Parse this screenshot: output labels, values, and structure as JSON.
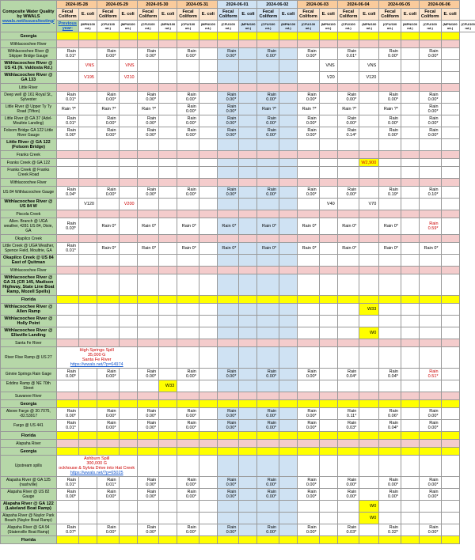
{
  "colors": {
    "green": "#b6d7a8",
    "orange": "#f9cb9c",
    "blue": "#cfe2f3",
    "tan": "#fce5cd",
    "pink": "#f4cccc",
    "yellow": "#ffff00",
    "red": "#cc0000",
    "link": "#1155cc"
  },
  "header": {
    "title1": "Composite Water Quality",
    "title2": "by WWALS",
    "link": "wwals.net/issues/testing/",
    "prev_year": "Previous year:",
    "dates": [
      "2024-05-28",
      "2024-05-29",
      "2024-05-30",
      "2024-05-31",
      "2024-06-01",
      "2024-06-02",
      "2024-06-03",
      "2024-06-04",
      "2024-06-05",
      "2024-06-06"
    ],
    "blue_dates": [
      4,
      5
    ],
    "sub": {
      "fecal": "Fecal Coliform",
      "ecoli": "E. coli"
    },
    "unit_fecal": "(MPN/100 mL)",
    "unit_ecoli": "(CFU/100 mL)"
  },
  "rows": [
    {
      "label": "Georgia",
      "type": "state",
      "cells_yellow": true
    },
    {
      "label": "Withlacoochee River",
      "type": "pink"
    },
    {
      "label": "Withlacoochee River @ Skipper Bridge Gauge",
      "cells": {
        "1": "Rain 0.01*",
        "3": "Rain 0.00*",
        "5": "Rain 0.00*",
        "7": "Rain 0.00*",
        "9": "Rain 0.00*",
        "11": "Rain 0.00*",
        "13": "Rain 0.00*",
        "15": "Rain 0.01*",
        "17": "Rain 0.00*",
        "19": "Rain 0.00*"
      }
    },
    {
      "label": "Withlacoochee River @ US 41 (N. Valdosta Rd.)",
      "bold": true,
      "cells": {
        "2": "VNS",
        "4": "VNS",
        "14": "VNS",
        "16": "VNS"
      },
      "red": {
        "2": true,
        "4": true
      }
    },
    {
      "label": "Withlacoochee River @ GA 133",
      "bold": true,
      "cells": {
        "2": "V195",
        "4": "V210",
        "14": "V20",
        "16": "V120"
      },
      "red": {
        "2": true,
        "4": true
      }
    },
    {
      "label": "Little River",
      "type": "pink"
    },
    {
      "label": "Deep well @ 161 Royal St., Sylvester",
      "cells": {
        "1": "Rain 0.01*",
        "3": "Rain 0.00*",
        "5": "Rain 0.00*",
        "7": "Rain 0.00*",
        "9": "Rain 0.00*",
        "11": "Rain 0.00*",
        "13": "Rain 0.00*",
        "15": "Rain 0.00*",
        "17": "Rain 0.00*",
        "19": "Rain 0.00*"
      }
    },
    {
      "label": "Little River @ Upper Ty Ty Road (Tifton)",
      "cells": {
        "1": "Rain ?*",
        "3": "Rain ?*",
        "5": "Rain ?*",
        "7": "Rain 0.00*",
        "9": "Rain 0.00*",
        "11": "Rain ?*",
        "13": "Rain ?*",
        "15": "Rain ?*",
        "17": "Rain ?*",
        "19": "Rain 0.00*"
      }
    },
    {
      "label": "Little River @ GA 37 (Adel-Moultrie Landing)",
      "cells": {
        "1": "Rain 0.01*",
        "3": "Rain 0.00*",
        "5": "Rain 0.00*",
        "7": "Rain 0.00*",
        "9": "Rain 0.00*",
        "11": "Rain 0.00*",
        "13": "Rain 0.00*",
        "15": "Rain 0.00*",
        "17": "Rain 0.00*",
        "19": "Rain 0.00*"
      }
    },
    {
      "label": "Folsom Bridge GA 122 Little River Gauge",
      "cells": {
        "1": "Rain 0.00*",
        "3": "Rain 0.00*",
        "5": "Rain 0.00*",
        "7": "Rain 0.00*",
        "9": "Rain 0.00*",
        "11": "Rain 0.00*",
        "13": "Rain 0.00*",
        "15": "Rain 0.14*",
        "17": "Rain 0.00*",
        "19": "Rain 0.00*"
      }
    },
    {
      "label": "Little River @ GA 122 (Folsom Bridge)",
      "bold": true
    },
    {
      "label": "Franks Creek",
      "type": "pink"
    },
    {
      "label": "Franks Creek @ GA 122",
      "cells": {
        "16": "W2,900"
      },
      "red": {
        "16": true
      }
    },
    {
      "label": "Franks Creek @ Franks Creek Road"
    },
    {
      "label": "Withlacoochee River",
      "type": "pink"
    },
    {
      "label": "US 84 Withlacoochee Gauge",
      "cells": {
        "1": "Rain 0.04*",
        "3": "Rain 0.00*",
        "5": "Rain 0.00*",
        "7": "Rain 0.00*",
        "9": "Rain 0.00*",
        "11": "Rain 0.00*",
        "13": "Rain 0.00*",
        "15": "Rain 0.00*",
        "17": "Rain 0.19*",
        "19": "Rain 0.10*"
      }
    },
    {
      "label": "Withlacoochee River @ US 84 W",
      "bold": true,
      "cells": {
        "2": "V120",
        "4": "V200",
        "14": "V40",
        "16": "V70"
      },
      "red": {
        "4": true
      }
    },
    {
      "label": "Piscola Creek",
      "type": "pink"
    },
    {
      "label": "Allen. Branch @ UGA weather, 4281 US 84, Dixie, GA",
      "cells": {
        "1": "Rain 0.03*",
        "3": "Rain 0*",
        "5": "Rain 0*",
        "7": "Rain 0*",
        "9": "Rain 0*",
        "11": "Rain 0*",
        "13": "Rain 0*",
        "15": "Rain 0*",
        "17": "Rain 0*",
        "19": "Rain 0.59*"
      },
      "red": {
        "19": true
      }
    },
    {
      "label": "Okapilco Creek",
      "type": "pink"
    },
    {
      "label": "Little Creek @ UGA Weather, Spence Field, Moultrie, GA",
      "cells": {
        "1": "Rain 0.01*",
        "3": "Rain 0*",
        "5": "Rain 0*",
        "7": "Rain 0*",
        "9": "Rain 0*",
        "11": "Rain 0*",
        "13": "Rain 0*",
        "15": "Rain 0*",
        "17": "Rain 0*",
        "19": "Rain 0*"
      }
    },
    {
      "label": "Okapilco Creek @ US 84 East of Quitman",
      "bold": true
    },
    {
      "label": "Withlacoochee River",
      "type": "pink"
    },
    {
      "label": "Withlacoochee River @ GA 31 (CR 145, Madison Highway, State Line Boat Ramp, Mozell Spells)",
      "bold": true
    },
    {
      "label": "Florida",
      "type": "state",
      "cells_yellow": true
    },
    {
      "label": "Withlacoochee River @ Allen Ramp",
      "bold": true,
      "cells": {
        "16": "W33"
      }
    },
    {
      "label": "Withlacoochee River @ Holly Point",
      "bold": true
    },
    {
      "label": "Withlacoochee River @ Ellaville Landing",
      "bold": true,
      "cells": {
        "16": "W0"
      }
    },
    {
      "label": "Santa Fe River",
      "type": "pink"
    },
    {
      "label": "River Rise Ramp @ US 27",
      "spill": "high_springs"
    },
    {
      "label": "Ginnie Springs Rain Gage",
      "cells": {
        "1": "Rain 0.00*",
        "3": "Rain 0.00*",
        "5": "Rain 0.00*",
        "7": "Rain 0.00*",
        "9": "Rain 0.00*",
        "11": "Rain 0.00*",
        "13": "Rain 0.00*",
        "15": "Rain 0.04*",
        "17": "Rain 0.04*",
        "19": "Rain 0.51*"
      },
      "red": {
        "19": true
      }
    },
    {
      "label": "Eddins Ramp @ NE 70th Street",
      "cells": {
        "6": "W33"
      }
    },
    {
      "label": "Suwanee River",
      "type": "pink"
    },
    {
      "label": "Georgia",
      "type": "state",
      "cells_yellow": true
    },
    {
      "label": "Above Fargo @ 30.7075, -82.53917",
      "cells": {
        "1": "Rain 0.00*",
        "3": "Rain 0.00*",
        "5": "Rain 0.00*",
        "7": "Rain 0.00*",
        "9": "Rain 0.00*",
        "11": "Rain 0.00*",
        "13": "Rain 0.00*",
        "15": "Rain 0.11*",
        "17": "Rain 0.06*",
        "19": "Rain 0.00*"
      }
    },
    {
      "label": "Fargo @ US 441",
      "cells": {
        "1": "Rain 0.01*",
        "3": "Rain 0.00*",
        "5": "Rain 0.00*",
        "7": "Rain 0.00*",
        "9": "Rain 0.00*",
        "11": "Rain 0.00*",
        "13": "Rain 0.00*",
        "15": "Rain 0.03*",
        "17": "Rain 0.04*",
        "19": "Rain 0.00*"
      }
    },
    {
      "label": "Florida",
      "type": "state",
      "cells_yellow": true
    },
    {
      "label": "Alapaha River",
      "type": "pink"
    },
    {
      "label": "Georgia",
      "type": "state",
      "cells_yellow": true
    },
    {
      "label": "Upstream spills",
      "spill": "ashburn"
    },
    {
      "label": "Alapaha River @ GA 125 (nashville)",
      "cells": {
        "1": "Rain 0.01*",
        "3": "Rain 0.01*",
        "5": "Rain 0.00*",
        "7": "Rain 0.00*",
        "9": "Rain 0.00*",
        "11": "Rain 0.00*",
        "13": "Rain 0.00*",
        "15": "Rain 0.00*",
        "17": "Rain 0.00*",
        "19": "Rain 0.00*"
      }
    },
    {
      "label": "Alapaha River @ US 82 Gauge",
      "cells": {
        "1": "Rain 0.00*",
        "3": "Rain 0.00*",
        "5": "Rain 0.00*",
        "7": "Rain 0.00*",
        "9": "Rain 0.00*",
        "11": "Rain 0.00*",
        "13": "Rain 0.00*",
        "15": "Rain 0.00*",
        "17": "Rain 0.00*",
        "19": "Rain 0.00*"
      }
    },
    {
      "label": "Alapaha River @ GA 122 (Lakeland Boat Ramp)",
      "bold": true,
      "cells": {
        "16": "W0"
      }
    },
    {
      "label": "Alapaha River @ Naylor Park Beach (Naylor Boat Ramp)",
      "cells": {
        "16": "W0"
      }
    },
    {
      "label": "Alapaha River @ GA 94 (Statenville Boat Ramp)",
      "cells": {
        "1": "Rain 0.07*",
        "3": "Rain 0.00*",
        "5": "Rain 0.00*",
        "7": "Rain 0.00*",
        "9": "Rain 0.00*",
        "11": "Rain 0.00*",
        "13": "Rain 0.00*",
        "15": "Rain 0.03*",
        "17": "Rain 0.32*",
        "19": "Rain 0.00*"
      }
    },
    {
      "label": "Florida",
      "type": "state",
      "cells_yellow": true
    }
  ],
  "spills": {
    "high_springs": {
      "line1": "High Springs Spill",
      "line2": "35,000 G",
      "line3": "Santa Fe River",
      "link": "https://wwals.net/?p=64974"
    },
    "ashburn": {
      "line1": "Ashburn Spill",
      "line2": "300,000 G",
      "line3": "ockhouse & Sylvia Drive into Hat Creek",
      "link": "https://wwals.net/?p=65025"
    }
  }
}
